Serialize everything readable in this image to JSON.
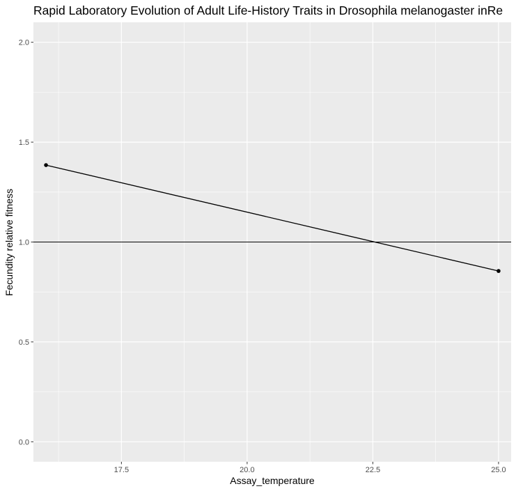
{
  "chart_data": {
    "type": "line",
    "title": "Rapid Laboratory Evolution of Adult Life-History Traits in Drosophila melanogaster inRe",
    "xlabel": "Assay_temperature",
    "ylabel": "Fecundity relative fitness",
    "xlim": [
      15.75,
      25.25
    ],
    "ylim": [
      -0.1,
      2.1
    ],
    "x_ticks": [
      17.5,
      20.0,
      22.5,
      25.0
    ],
    "x_tick_labels": [
      "17.5",
      "20.0",
      "22.5",
      "25.0"
    ],
    "y_ticks": [
      0.0,
      0.5,
      1.0,
      1.5,
      2.0
    ],
    "y_tick_labels": [
      "0.0",
      "0.5",
      "1.0",
      "1.5",
      "2.0"
    ],
    "series": [
      {
        "x": [
          16,
          25
        ],
        "y": [
          1.385,
          0.855
        ]
      }
    ],
    "reference_line": {
      "y": 1.0
    },
    "grid": true,
    "legend": "none",
    "colors": {
      "panel": "#EBEBEB",
      "grid": "#FFFFFF",
      "line": "#000000",
      "point": "#000000",
      "tick_text": "#4D4D4D"
    }
  }
}
